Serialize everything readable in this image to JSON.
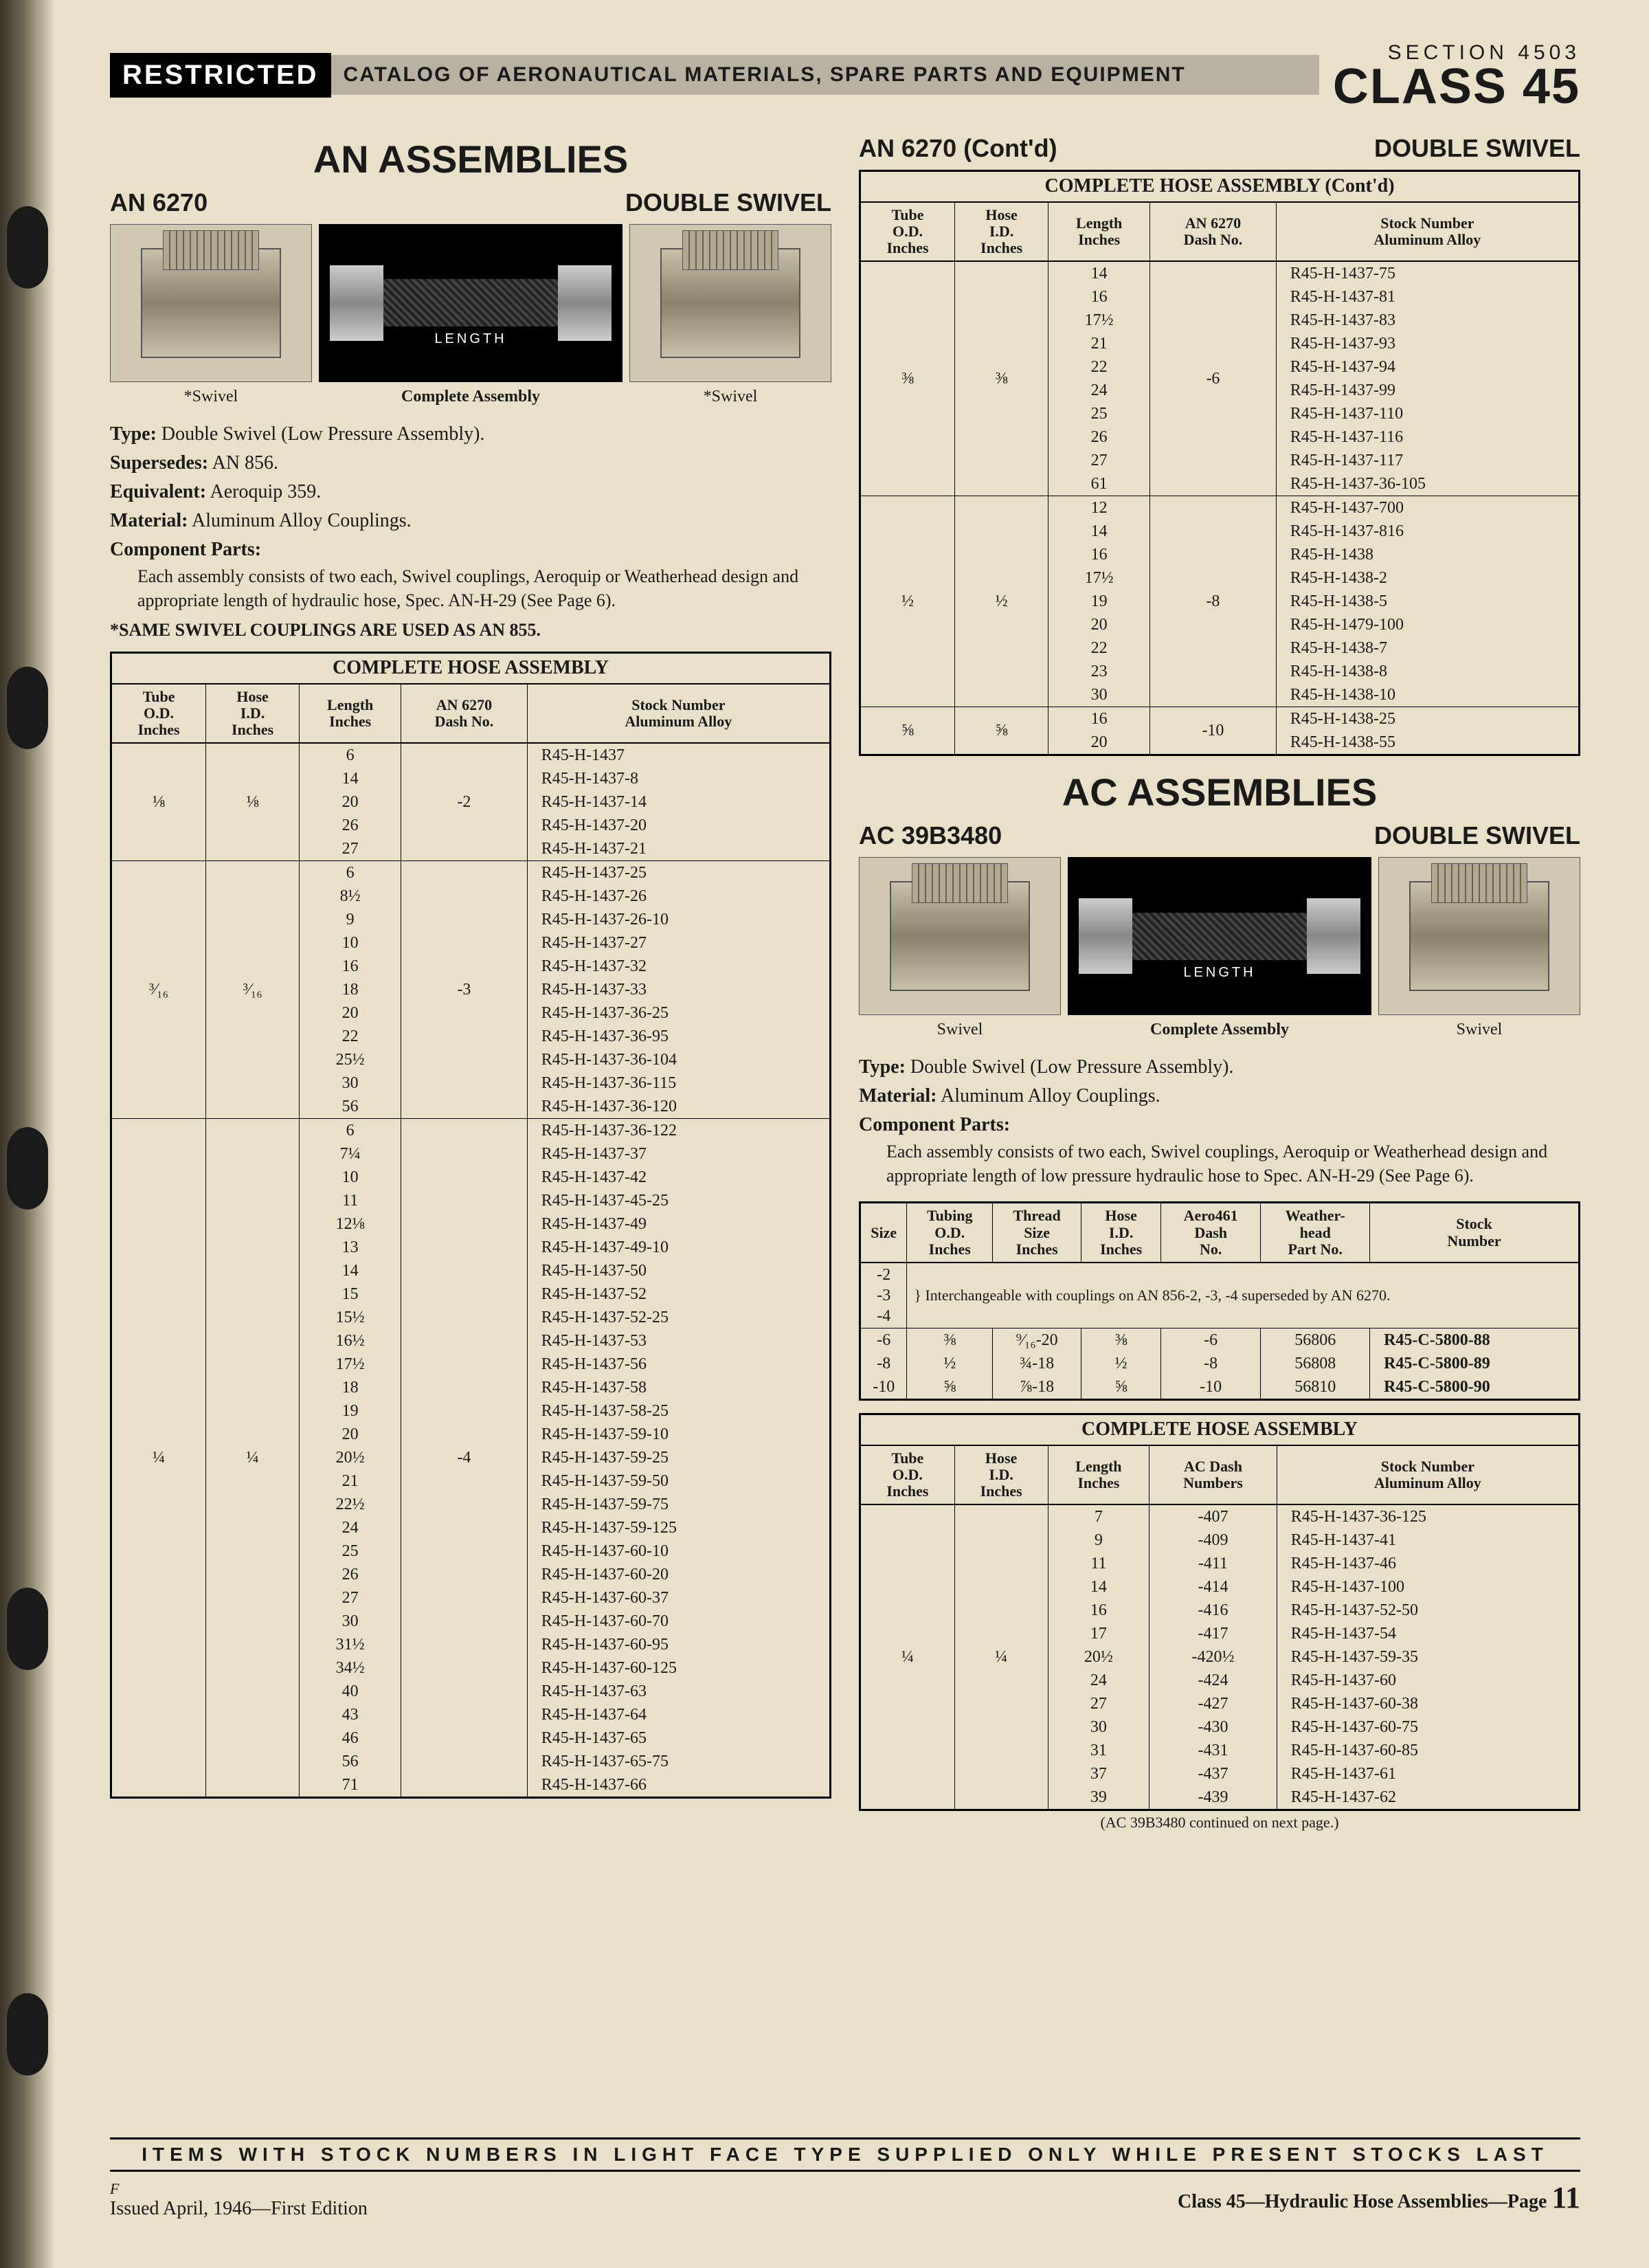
{
  "header": {
    "restricted": "RESTRICTED",
    "catalog": "CATALOG OF AERONAUTICAL MATERIALS, SPARE PARTS AND EQUIPMENT",
    "section": "SECTION 4503",
    "class": "CLASS 45"
  },
  "left": {
    "main_title": "AN ASSEMBLIES",
    "part_no": "AN 6270",
    "variant": "DOUBLE SWIVEL",
    "captions": {
      "swivel": "*Swivel",
      "assembly": "Complete Assembly"
    },
    "length_label": "LENGTH",
    "specs": {
      "type_label": "Type:",
      "type": "Double Swivel (Low Pressure Assembly).",
      "supersedes_label": "Supersedes:",
      "supersedes": "AN 856.",
      "equivalent_label": "Equivalent:",
      "equivalent": "Aeroquip 359.",
      "material_label": "Material:",
      "material": "Aluminum Alloy Couplings.",
      "comp_label": "Component Parts:",
      "comp": "Each assembly consists of two each, Swivel couplings, Aeroquip or Weatherhead design and appropriate length of hydraulic hose, Spec. AN-H-29 (See Page 6).",
      "same_note": "*SAME SWIVEL COUPLINGS ARE USED AS AN 855."
    },
    "table_title": "COMPLETE HOSE ASSEMBLY",
    "cols": [
      "Tube\nO.D.\nInches",
      "Hose\nI.D.\nInches",
      "Length\nInches",
      "AN 6270\nDash No.",
      "Stock Number\nAluminum Alloy"
    ],
    "groups": [
      {
        "tube": "⅛",
        "hose": "⅛",
        "dash": "-2",
        "rows": [
          [
            "6",
            "R45-H-1437"
          ],
          [
            "14",
            "R45-H-1437-8"
          ],
          [
            "20",
            "R45-H-1437-14"
          ],
          [
            "26",
            "R45-H-1437-20"
          ],
          [
            "27",
            "R45-H-1437-21"
          ]
        ]
      },
      {
        "tube": "³⁄₁₆",
        "hose": "³⁄₁₆",
        "dash": "-3",
        "rows": [
          [
            "6",
            "R45-H-1437-25"
          ],
          [
            "8½",
            "R45-H-1437-26"
          ],
          [
            "9",
            "R45-H-1437-26-10"
          ],
          [
            "10",
            "R45-H-1437-27"
          ],
          [
            "16",
            "R45-H-1437-32"
          ],
          [
            "18",
            "R45-H-1437-33"
          ],
          [
            "20",
            "R45-H-1437-36-25"
          ],
          [
            "22",
            "R45-H-1437-36-95"
          ],
          [
            "25½",
            "R45-H-1437-36-104"
          ],
          [
            "30",
            "R45-H-1437-36-115"
          ],
          [
            "56",
            "R45-H-1437-36-120"
          ]
        ]
      },
      {
        "tube": "¼",
        "hose": "¼",
        "dash": "-4",
        "rows": [
          [
            "6",
            "R45-H-1437-36-122"
          ],
          [
            "7¼",
            "R45-H-1437-37"
          ],
          [
            "10",
            "R45-H-1437-42"
          ],
          [
            "11",
            "R45-H-1437-45-25"
          ],
          [
            "12⅛",
            "R45-H-1437-49"
          ],
          [
            "13",
            "R45-H-1437-49-10"
          ],
          [
            "14",
            "R45-H-1437-50"
          ],
          [
            "15",
            "R45-H-1437-52"
          ],
          [
            "15½",
            "R45-H-1437-52-25"
          ],
          [
            "16½",
            "R45-H-1437-53"
          ],
          [
            "17½",
            "R45-H-1437-56"
          ],
          [
            "18",
            "R45-H-1437-58"
          ],
          [
            "19",
            "R45-H-1437-58-25"
          ],
          [
            "20",
            "R45-H-1437-59-10"
          ],
          [
            "20½",
            "R45-H-1437-59-25"
          ],
          [
            "21",
            "R45-H-1437-59-50"
          ],
          [
            "22½",
            "R45-H-1437-59-75"
          ],
          [
            "24",
            "R45-H-1437-59-125"
          ],
          [
            "25",
            "R45-H-1437-60-10"
          ],
          [
            "26",
            "R45-H-1437-60-20"
          ],
          [
            "27",
            "R45-H-1437-60-37"
          ],
          [
            "30",
            "R45-H-1437-60-70"
          ],
          [
            "31½",
            "R45-H-1437-60-95"
          ],
          [
            "34½",
            "R45-H-1437-60-125"
          ],
          [
            "40",
            "R45-H-1437-63"
          ],
          [
            "43",
            "R45-H-1437-64"
          ],
          [
            "46",
            "R45-H-1437-65"
          ],
          [
            "56",
            "R45-H-1437-65-75"
          ],
          [
            "71",
            "R45-H-1437-66"
          ]
        ]
      }
    ]
  },
  "right_top": {
    "part_no": "AN 6270 (Cont'd)",
    "variant": "DOUBLE SWIVEL",
    "table_title": "COMPLETE HOSE ASSEMBLY (Cont'd)",
    "cols": [
      "Tube\nO.D.\nInches",
      "Hose\nI.D.\nInches",
      "Length\nInches",
      "AN 6270\nDash No.",
      "Stock Number\nAluminum Alloy"
    ],
    "groups": [
      {
        "tube": "⅜",
        "hose": "⅜",
        "dash": "-6",
        "rows": [
          [
            "14",
            "R45-H-1437-75"
          ],
          [
            "16",
            "R45-H-1437-81"
          ],
          [
            "17½",
            "R45-H-1437-83"
          ],
          [
            "21",
            "R45-H-1437-93"
          ],
          [
            "22",
            "R45-H-1437-94"
          ],
          [
            "24",
            "R45-H-1437-99"
          ],
          [
            "25",
            "R45-H-1437-110"
          ],
          [
            "26",
            "R45-H-1437-116"
          ],
          [
            "27",
            "R45-H-1437-117"
          ],
          [
            "61",
            "R45-H-1437-36-105"
          ]
        ]
      },
      {
        "tube": "½",
        "hose": "½",
        "dash": "-8",
        "rows": [
          [
            "12",
            "R45-H-1437-700"
          ],
          [
            "14",
            "R45-H-1437-816"
          ],
          [
            "16",
            "R45-H-1438"
          ],
          [
            "17½",
            "R45-H-1438-2"
          ],
          [
            "19",
            "R45-H-1438-5"
          ],
          [
            "20",
            "R45-H-1479-100"
          ],
          [
            "22",
            "R45-H-1438-7"
          ],
          [
            "23",
            "R45-H-1438-8"
          ],
          [
            "30",
            "R45-H-1438-10"
          ]
        ]
      },
      {
        "tube": "⅝",
        "hose": "⅝",
        "dash": "-10",
        "rows": [
          [
            "16",
            "R45-H-1438-25"
          ],
          [
            "20",
            "R45-H-1438-55"
          ]
        ]
      }
    ]
  },
  "ac": {
    "main_title": "AC ASSEMBLIES",
    "part_no": "AC 39B3480",
    "variant": "DOUBLE SWIVEL",
    "captions": {
      "swivel": "Swivel",
      "assembly": "Complete Assembly"
    },
    "length_label": "LENGTH",
    "specs": {
      "type_label": "Type:",
      "type": "Double Swivel (Low Pressure Assembly).",
      "material_label": "Material:",
      "material": "Aluminum Alloy Couplings.",
      "comp_label": "Component Parts:",
      "comp": "Each assembly consists of two each, Swivel couplings, Aeroquip or Weatherhead design and appropriate length of low pressure hydraulic hose to Spec. AN-H-29 (See Page 6)."
    },
    "size_cols": [
      "Size",
      "Tubing\nO.D.\nInches",
      "Thread\nSize\nInches",
      "Hose\nI.D.\nInches",
      "Aero461\nDash\nNo.",
      "Weather-\nhead\nPart No.",
      "Stock\nNumber"
    ],
    "size_merge_sizes": "-2\n-3\n-4",
    "size_merge_note": "Interchangeable with couplings on AN 856-2, -3, -4 superseded by AN 6270.",
    "size_rows": [
      [
        "-6",
        "⅜",
        "⁹⁄₁₆-20",
        "⅜",
        "-6",
        "56806",
        "R45-C-5800-88"
      ],
      [
        "-8",
        "½",
        "¾-18",
        "½",
        "-8",
        "56808",
        "R45-C-5800-89"
      ],
      [
        "-10",
        "⅝",
        "⅞-18",
        "⅝",
        "-10",
        "56810",
        "R45-C-5800-90"
      ]
    ],
    "hose_title": "COMPLETE HOSE ASSEMBLY",
    "hose_cols": [
      "Tube\nO.D.\nInches",
      "Hose\nI.D.\nInches",
      "Length\nInches",
      "AC Dash\nNumbers",
      "Stock Number\nAluminum Alloy"
    ],
    "hose_group": {
      "tube": "¼",
      "hose": "¼",
      "rows": [
        [
          "7",
          "-407",
          "R45-H-1437-36-125"
        ],
        [
          "9",
          "-409",
          "R45-H-1437-41"
        ],
        [
          "11",
          "-411",
          "R45-H-1437-46"
        ],
        [
          "14",
          "-414",
          "R45-H-1437-100"
        ],
        [
          "16",
          "-416",
          "R45-H-1437-52-50"
        ],
        [
          "17",
          "-417",
          "R45-H-1437-54"
        ],
        [
          "20½",
          "-420½",
          "R45-H-1437-59-35"
        ],
        [
          "24",
          "-424",
          "R45-H-1437-60"
        ],
        [
          "27",
          "-427",
          "R45-H-1437-60-38"
        ],
        [
          "30",
          "-430",
          "R45-H-1437-60-75"
        ],
        [
          "31",
          "-431",
          "R45-H-1437-60-85"
        ],
        [
          "37",
          "-437",
          "R45-H-1437-61"
        ],
        [
          "39",
          "-439",
          "R45-H-1437-62"
        ]
      ]
    },
    "cont_note": "(AC 39B3480 continued on next page.)"
  },
  "footer_bar": "ITEMS WITH STOCK NUMBERS IN LIGHT FACE TYPE SUPPLIED ONLY WHILE PRESENT STOCKS LAST",
  "footer": {
    "left_top": "F",
    "left": "Issued April, 1946—First Edition",
    "right": "Class 45—Hydraulic Hose Assemblies—Page",
    "page": "11"
  }
}
